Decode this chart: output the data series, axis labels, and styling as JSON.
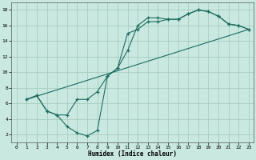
{
  "xlabel": "Humidex (Indice chaleur)",
  "xlim": [
    -0.5,
    23.5
  ],
  "ylim": [
    1,
    19
  ],
  "xticks": [
    0,
    1,
    2,
    3,
    4,
    5,
    6,
    7,
    8,
    9,
    10,
    11,
    12,
    13,
    14,
    15,
    16,
    17,
    18,
    19,
    20,
    21,
    22,
    23
  ],
  "yticks": [
    2,
    4,
    6,
    8,
    10,
    12,
    14,
    16,
    18
  ],
  "bg_color": "#c8e8e0",
  "grid_color": "#a0c8bc",
  "line_color": "#1e6b60",
  "line1_x": [
    1,
    2,
    3,
    4,
    5,
    6,
    7,
    8,
    9,
    10,
    11,
    12,
    13,
    14,
    15,
    16,
    17,
    18,
    19,
    20,
    21,
    22,
    23
  ],
  "line1_y": [
    6.5,
    7.0,
    5.0,
    4.5,
    3.0,
    2.2,
    1.8,
    2.5,
    9.5,
    10.5,
    12.8,
    16.0,
    17.0,
    17.0,
    16.8,
    16.8,
    17.5,
    18.0,
    17.8,
    17.2,
    16.2,
    16.0,
    15.5
  ],
  "line2_x": [
    1,
    2,
    3,
    4,
    5,
    6,
    7,
    8,
    9,
    10,
    11,
    12,
    13,
    14,
    15,
    16,
    17,
    18,
    19,
    20,
    21,
    22,
    23
  ],
  "line2_y": [
    6.5,
    7.0,
    5.0,
    4.5,
    4.5,
    6.5,
    6.5,
    7.5,
    9.5,
    10.5,
    15.0,
    15.5,
    16.5,
    16.5,
    16.8,
    16.8,
    17.5,
    18.0,
    17.8,
    17.2,
    16.2,
    16.0,
    15.5
  ],
  "line3_x": [
    1,
    23
  ],
  "line3_y": [
    6.5,
    15.5
  ],
  "figsize": [
    3.2,
    2.0
  ],
  "dpi": 100
}
